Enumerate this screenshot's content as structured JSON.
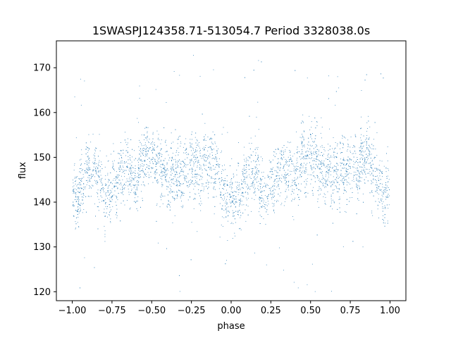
{
  "chart_data": {
    "type": "scatter",
    "title": "1SWASPJ124358.71-513054.7 Period 3328038.0s",
    "xlabel": "phase",
    "ylabel": "flux",
    "xlim": [
      -1.1,
      1.1
    ],
    "ylim": [
      118,
      176
    ],
    "xticks": [
      -1.0,
      -0.75,
      -0.5,
      -0.25,
      0.0,
      0.25,
      0.5,
      0.75,
      1.0
    ],
    "xtick_labels": [
      "−1.00",
      "−0.75",
      "−0.50",
      "−0.25",
      "0.00",
      "0.25",
      "0.50",
      "0.75",
      "1.00"
    ],
    "yticks": [
      120,
      130,
      140,
      150,
      160,
      170
    ],
    "ytick_labels": [
      "120",
      "130",
      "140",
      "150",
      "160",
      "170"
    ],
    "grid": false,
    "marker_color": "#1f77b4",
    "profile": {
      "phase": [
        0.0,
        0.05,
        0.1,
        0.15,
        0.2,
        0.25,
        0.3,
        0.35,
        0.4,
        0.45,
        0.5,
        0.55,
        0.6,
        0.65,
        0.7,
        0.75,
        0.8,
        0.85,
        0.9,
        0.95,
        1.0
      ],
      "flux": [
        141,
        142,
        147,
        147,
        141,
        144,
        146,
        148,
        145,
        150,
        150,
        148,
        146,
        146,
        147,
        148,
        147,
        150,
        148,
        142,
        141
      ]
    },
    "scatter_sigma": 3.2,
    "outlier_range": [
      120,
      173
    ]
  }
}
